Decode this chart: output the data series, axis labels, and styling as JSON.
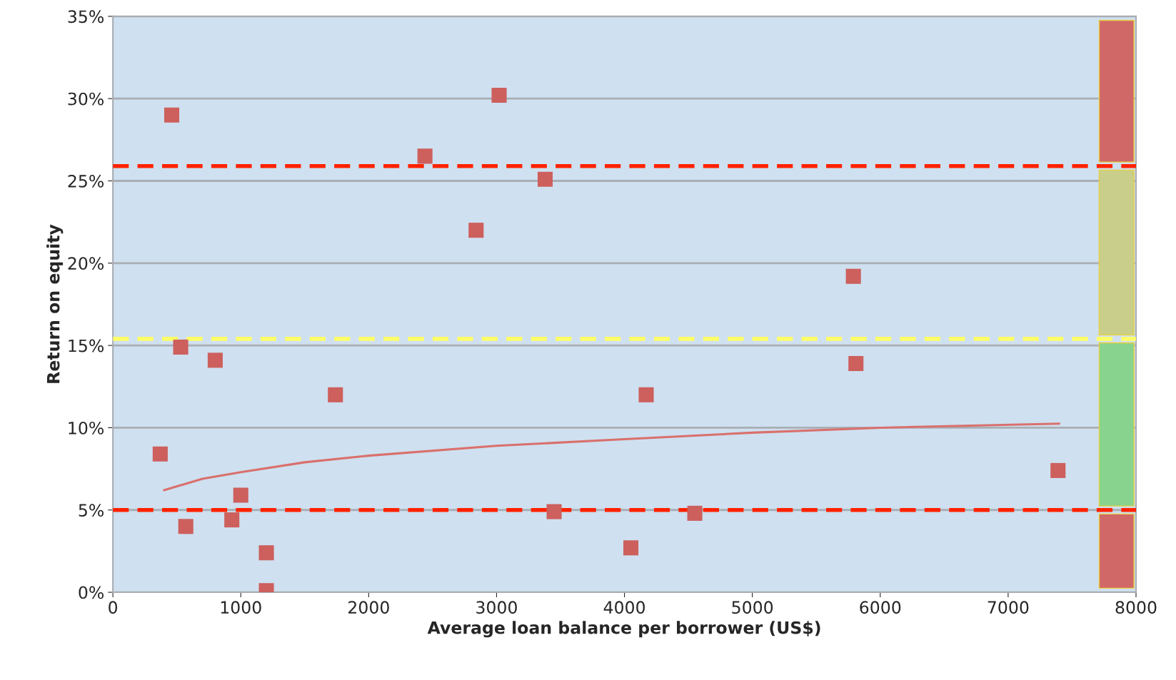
{
  "chart_data": {
    "type": "scatter",
    "xlabel": "Average loan balance per borrower (US$)",
    "ylabel": "Return on equity",
    "xlim": [
      0,
      8000
    ],
    "xticks": [
      0,
      1000,
      2000,
      3000,
      4000,
      5000,
      6000,
      7000,
      8000
    ],
    "ylim": [
      0,
      35
    ],
    "yticks": [
      {
        "value": 0,
        "label": "0%"
      },
      {
        "value": 5,
        "label": "5%"
      },
      {
        "value": 10,
        "label": "10%"
      },
      {
        "value": 15,
        "label": "15%"
      },
      {
        "value": 20,
        "label": "20%"
      },
      {
        "value": 25,
        "label": "25%"
      },
      {
        "value": 30,
        "label": "30%"
      },
      {
        "value": 35,
        "label": "35%"
      }
    ],
    "grid": "y",
    "marker": "square",
    "legend": false,
    "series": [
      {
        "color": "#cd5f5c",
        "x": [
          460,
          530,
          370,
          570,
          800,
          930,
          1000,
          1200,
          1200,
          1740,
          2440,
          2840,
          3020,
          3380,
          3450,
          4050,
          4170,
          4550,
          5790,
          5810,
          7390
        ],
        "values": [
          29.0,
          14.9,
          8.4,
          4.0,
          14.1,
          4.4,
          5.9,
          2.4,
          0.1,
          12.0,
          26.5,
          22.0,
          30.2,
          25.1,
          4.9,
          2.7,
          12.0,
          4.8,
          19.2,
          13.9,
          7.4
        ]
      },
      {
        "type": "line",
        "color": "#d9706c",
        "marker": "none",
        "x": [
          400,
          700,
          1000,
          1500,
          2000,
          3000,
          4000,
          5000,
          6000,
          7400
        ],
        "values": [
          6.2,
          6.9,
          7.3,
          7.9,
          8.3,
          8.9,
          9.3,
          9.7,
          10.0,
          10.25
        ]
      }
    ],
    "ref_lines": [
      {
        "axis": "y",
        "value": 25.9,
        "color": "#ff2200",
        "line_style": "dashed"
      },
      {
        "axis": "y",
        "value": 15.4,
        "color": "#ffff66",
        "line_style": "dashed"
      },
      {
        "axis": "y",
        "value": 5.0,
        "color": "#ff2200",
        "line_style": "dashed"
      }
    ]
  }
}
